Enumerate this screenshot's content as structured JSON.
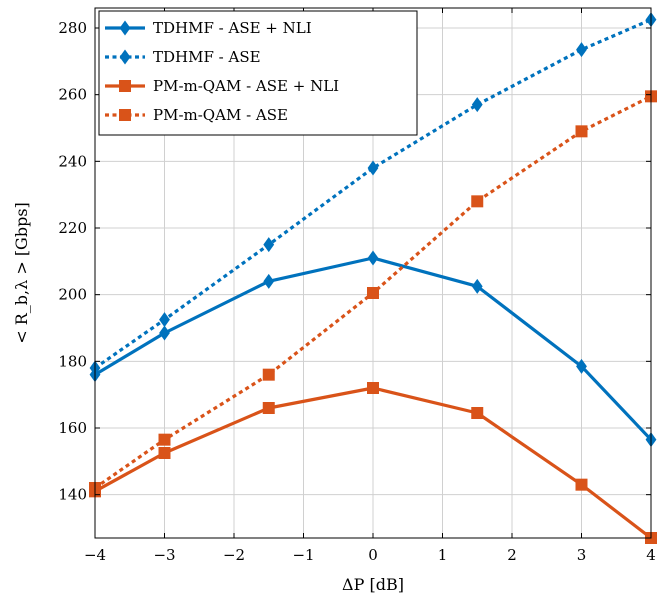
{
  "chart_data": {
    "type": "line",
    "title": "",
    "xlabel": "ΔP [dB]",
    "ylabel": "< R_b,λ > [Gbps]",
    "xlim": [
      -4,
      4
    ],
    "ylim": [
      127,
      286
    ],
    "xticks": [
      -4,
      -3,
      -2,
      -1,
      0,
      1,
      2,
      3,
      4
    ],
    "xtick_labels": [
      "−4",
      "−3",
      "−2",
      "−1",
      "0",
      "1",
      "2",
      "3",
      "4"
    ],
    "yticks": [
      140,
      160,
      180,
      200,
      220,
      240,
      260,
      280
    ],
    "ytick_labels": [
      "140",
      "160",
      "180",
      "200",
      "220",
      "240",
      "260",
      "280"
    ],
    "grid": true,
    "legend_position": "top-left",
    "colors": {
      "blue": "#0072bd",
      "orange": "#d95319"
    },
    "series": [
      {
        "name": "TDHMF - ASE + NLI",
        "color": "#0072bd",
        "line": "solid",
        "marker": "diamond",
        "x": [
          -4,
          -3,
          -1.5,
          0,
          1.5,
          3,
          4
        ],
        "y": [
          176,
          188.5,
          204,
          211,
          202.5,
          178.5,
          156.5
        ]
      },
      {
        "name": "TDHMF - ASE",
        "color": "#0072bd",
        "line": "dotted",
        "marker": "diamond",
        "x": [
          -4,
          -3,
          -1.5,
          0,
          1.5,
          3,
          4
        ],
        "y": [
          178,
          192.5,
          215,
          238,
          257,
          273.5,
          282.5
        ]
      },
      {
        "name": "PM-m-QAM - ASE + NLI",
        "color": "#d95319",
        "line": "solid",
        "marker": "square",
        "x": [
          -4,
          -3,
          -1.5,
          0,
          1.5,
          3,
          4
        ],
        "y": [
          141,
          152.5,
          166,
          172,
          164.5,
          143,
          127
        ]
      },
      {
        "name": "PM-m-QAM - ASE",
        "color": "#d95319",
        "line": "dotted",
        "marker": "square",
        "x": [
          -4,
          -3,
          -1.5,
          0,
          1.5,
          3,
          4
        ],
        "y": [
          142,
          156.5,
          176,
          200.5,
          228,
          249,
          259.5
        ]
      }
    ]
  }
}
